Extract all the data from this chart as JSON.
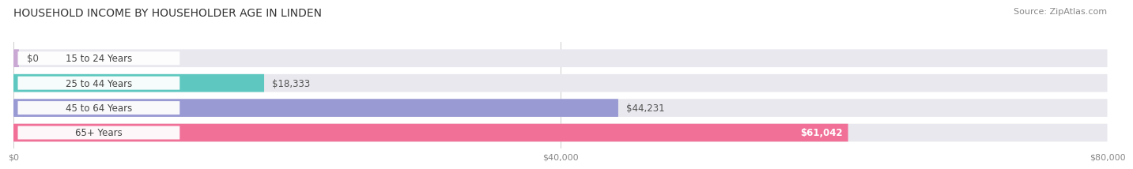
{
  "title": "HOUSEHOLD INCOME BY HOUSEHOLDER AGE IN LINDEN",
  "source": "Source: ZipAtlas.com",
  "categories": [
    "15 to 24 Years",
    "25 to 44 Years",
    "45 to 64 Years",
    "65+ Years"
  ],
  "values": [
    0,
    18333,
    44231,
    61042
  ],
  "bar_colors": [
    "#c9a8d4",
    "#5ec8c0",
    "#9999d4",
    "#f07098"
  ],
  "bar_bg_color": "#e8e8ee",
  "label_texts": [
    "$0",
    "$18,333",
    "$44,231",
    "$61,042"
  ],
  "xlabel_ticks": [
    0,
    40000,
    80000
  ],
  "xlabel_labels": [
    "$0",
    "$40,000",
    "$80,000"
  ],
  "xmax": 80000,
  "title_fontsize": 10,
  "source_fontsize": 8,
  "bar_label_fontsize": 8.5,
  "value_label_fontsize": 8.5,
  "tick_fontsize": 8,
  "bar_height": 0.72,
  "background_color": "#ffffff",
  "grid_color": "#cccccc",
  "pill_color": "#ffffff",
  "text_color": "#444444",
  "value_label_color": "#555555",
  "value_label_inside_color": "#ffffff"
}
